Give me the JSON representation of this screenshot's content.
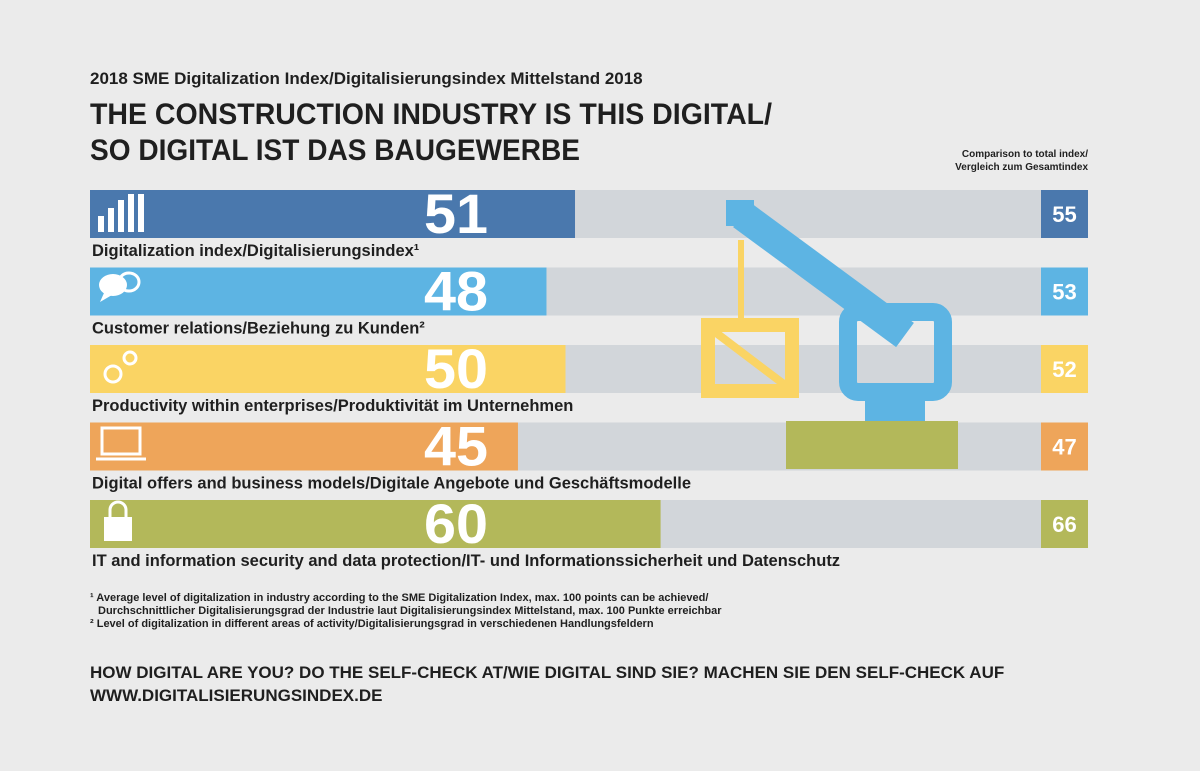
{
  "chart_data": {
    "type": "bar",
    "orientation": "horizontal",
    "supertitle": "2018 SME Digitalization Index/Digitalisierungsindex Mittelstand 2018",
    "title": [
      "THE CONSTRUCTION INDUSTRY IS THIS DIGITAL/",
      "SO DIGITAL IST DAS BAUGEWERBE"
    ],
    "comparison_label": [
      "Comparison to total index/",
      "Vergleich zum Gesamtindex"
    ],
    "categories": [
      "Digitalization index/Digitalisierungsindex¹",
      "Customer relations/Beziehung zu Kunden²",
      "Productivity within enterprises/Produktivität im Unternehmen",
      "Digital offers and business models/Digitale Angebote und Geschäftsmodelle",
      "IT and information security and data protection/IT- und Informationssicherheit und Datenschutz"
    ],
    "values": [
      51,
      48,
      50,
      45,
      60
    ],
    "comparison_values": [
      55,
      53,
      52,
      47,
      66
    ],
    "colors": [
      "#4a78ad",
      "#5db4e3",
      "#fad464",
      "#eea55a",
      "#b3b85a"
    ],
    "xlim": [
      0,
      100
    ],
    "footnotes": [
      [
        "¹ Average level of digitalization in industry according to the SME Digitalization Index, max. 100 points can be achieved/",
        "Durchschnittlicher Digitalisierungsgrad der Industrie laut Digitalisierungsindex Mittelstand, max. 100 Punkte erreichbar"
      ],
      [
        "² Level of digitalization in different areas of activity/Digitalisierungsgrad in verschiedenen Handlungsfeldern"
      ]
    ],
    "call_to_action": [
      "HOW DIGITAL ARE YOU? DO THE SELF-CHECK AT/WIE DIGITAL SIND SIE? MACHEN SIE DEN SELF-CHECK AUF",
      "WWW.DIGITALISIERUNGSINDEX.DE"
    ]
  }
}
